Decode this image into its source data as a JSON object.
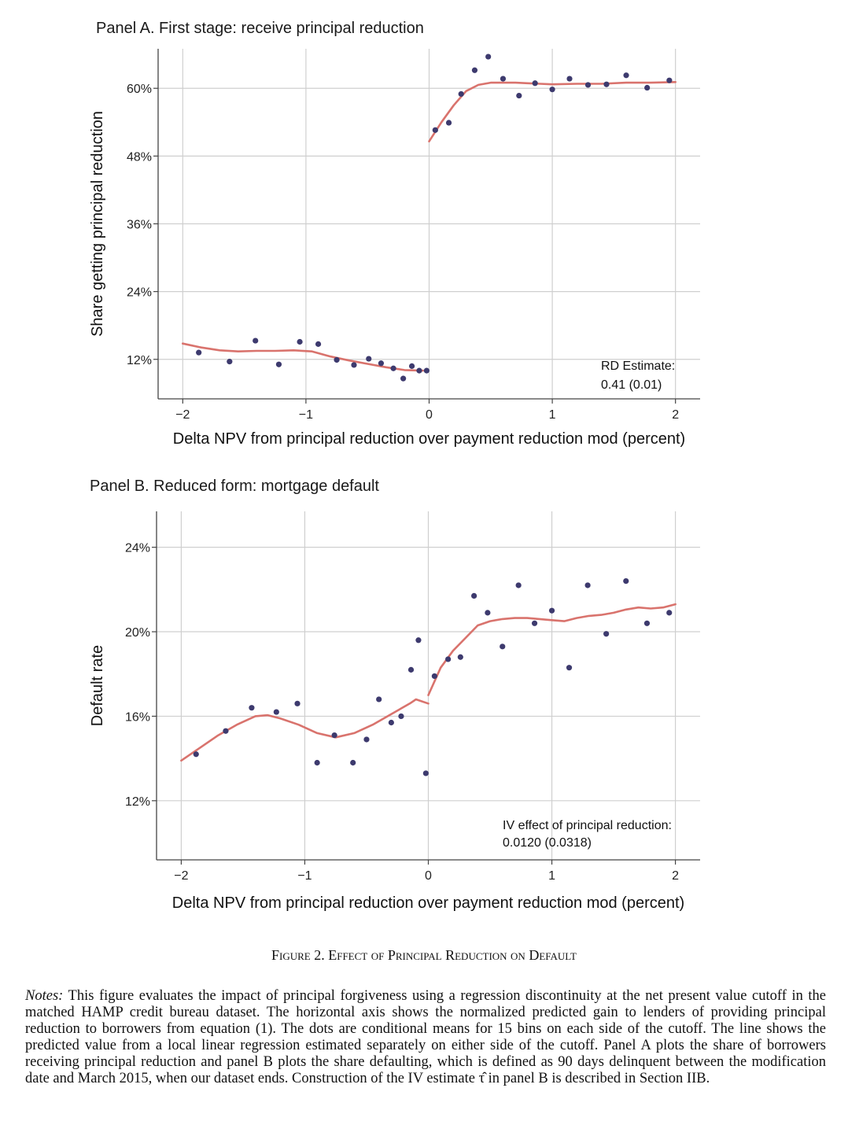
{
  "chart_data": [
    {
      "type": "scatter",
      "title": "Panel A. First stage: receive principal reduction",
      "xlabel": "Delta NPV from principal reduction over payment reduction mod (percent)",
      "ylabel": "Share getting principal reduction",
      "xlim": [
        -2.2,
        2.2
      ],
      "ylim": [
        5,
        67
      ],
      "x_ticks": [
        -2,
        -1,
        0,
        1,
        2
      ],
      "x_tick_labels": [
        "−2",
        "−1",
        "0",
        "1",
        "2"
      ],
      "y_ticks": [
        12,
        24,
        36,
        48,
        60
      ],
      "y_tick_labels": [
        "12%",
        "24%",
        "36%",
        "48%",
        "60%"
      ],
      "grid": true,
      "annotation": {
        "line1": "RD Estimate:",
        "line2": "0.41 (0.01)"
      },
      "series": [
        {
          "kind": "points",
          "x": [
            -1.87,
            -1.62,
            -1.41,
            -1.22,
            -1.05,
            -0.9,
            -0.75,
            -0.61,
            -0.49,
            -0.39,
            -0.29,
            -0.21,
            -0.14,
            -0.08,
            -0.02,
            0.05,
            0.16,
            0.26,
            0.37,
            0.48,
            0.6,
            0.73,
            0.86,
            1.0,
            1.14,
            1.29,
            1.44,
            1.6,
            1.77,
            1.95
          ],
          "y": [
            13.2,
            11.6,
            15.3,
            11.1,
            15.1,
            14.7,
            11.9,
            11.0,
            12.1,
            11.3,
            10.4,
            8.6,
            10.8,
            10.0,
            10.0,
            52.6,
            53.9,
            59.0,
            63.2,
            65.6,
            61.7,
            58.7,
            60.9,
            59.8,
            61.7,
            60.6,
            60.7,
            62.3,
            60.1,
            61.4
          ]
        },
        {
          "kind": "line",
          "side": "left",
          "x": [
            -2.0,
            -1.85,
            -1.7,
            -1.55,
            -1.4,
            -1.25,
            -1.1,
            -0.95,
            -0.8,
            -0.65,
            -0.5,
            -0.35,
            -0.2,
            -0.05
          ],
          "y": [
            14.8,
            14.1,
            13.6,
            13.4,
            13.5,
            13.5,
            13.6,
            13.4,
            12.5,
            11.8,
            11.2,
            10.6,
            10.1,
            10.0
          ]
        },
        {
          "kind": "line",
          "side": "right",
          "x": [
            0.0,
            0.1,
            0.2,
            0.3,
            0.4,
            0.5,
            0.6,
            0.7,
            0.8,
            0.9,
            1.0,
            1.2,
            1.4,
            1.6,
            1.8,
            2.0
          ],
          "y": [
            50.6,
            54.0,
            57.0,
            59.5,
            60.6,
            61.0,
            61.0,
            61.0,
            60.9,
            60.8,
            60.7,
            60.8,
            60.8,
            61.0,
            61.0,
            61.1
          ]
        }
      ]
    },
    {
      "type": "scatter",
      "title": "Panel B. Reduced form: mortgage default",
      "xlabel": "Delta NPV from principal reduction over payment reduction mod (percent)",
      "ylabel": "Default rate",
      "xlim": [
        -2.2,
        2.2
      ],
      "ylim": [
        9.2,
        25.7
      ],
      "x_ticks": [
        -2,
        -1,
        0,
        1,
        2
      ],
      "x_tick_labels": [
        "−2",
        "−1",
        "0",
        "1",
        "2"
      ],
      "y_ticks": [
        12,
        16,
        20,
        24
      ],
      "y_tick_labels": [
        "12%",
        "16%",
        "20%",
        "24%"
      ],
      "grid": true,
      "annotation": {
        "line1": "IV effect of principal reduction:",
        "line2": "0.0120 (0.0318)"
      },
      "series": [
        {
          "kind": "points",
          "x": [
            -1.88,
            -1.64,
            -1.43,
            -1.23,
            -1.06,
            -0.9,
            -0.76,
            -0.61,
            -0.5,
            -0.4,
            -0.3,
            -0.22,
            -0.14,
            -0.08,
            -0.02,
            0.05,
            0.16,
            0.26,
            0.37,
            0.48,
            0.6,
            0.73,
            0.86,
            1.0,
            1.14,
            1.29,
            1.44,
            1.6,
            1.77,
            1.95
          ],
          "y": [
            14.2,
            15.3,
            16.4,
            16.2,
            16.6,
            13.8,
            15.1,
            13.8,
            14.9,
            16.8,
            15.7,
            16.0,
            18.2,
            19.6,
            13.3,
            17.9,
            18.7,
            18.8,
            21.7,
            20.9,
            19.3,
            22.2,
            20.4,
            21.0,
            18.3,
            22.2,
            19.9,
            22.4,
            20.4,
            20.9
          ]
        },
        {
          "kind": "line",
          "side": "left",
          "x": [
            -2.0,
            -1.85,
            -1.7,
            -1.55,
            -1.4,
            -1.3,
            -1.2,
            -1.05,
            -0.9,
            -0.75,
            -0.6,
            -0.45,
            -0.3,
            -0.15,
            -0.1,
            0.0
          ],
          "y": [
            13.9,
            14.5,
            15.1,
            15.6,
            16.0,
            16.05,
            15.9,
            15.6,
            15.2,
            15.0,
            15.2,
            15.6,
            16.1,
            16.6,
            16.8,
            16.6
          ]
        },
        {
          "kind": "line",
          "side": "right",
          "x": [
            0.0,
            0.1,
            0.2,
            0.3,
            0.4,
            0.5,
            0.6,
            0.7,
            0.8,
            0.9,
            1.0,
            1.1,
            1.2,
            1.3,
            1.4,
            1.5,
            1.6,
            1.7,
            1.8,
            1.9,
            2.0
          ],
          "y": [
            17.0,
            18.3,
            19.1,
            19.7,
            20.3,
            20.5,
            20.6,
            20.65,
            20.65,
            20.6,
            20.55,
            20.5,
            20.65,
            20.75,
            20.8,
            20.9,
            21.05,
            21.15,
            21.1,
            21.15,
            21.3
          ]
        }
      ]
    }
  ],
  "caption": "Figure 2. Effect of Principal Reduction on Default",
  "notes_label": "Notes:",
  "notes_text": " This figure evaluates the impact of principal forgiveness using a regression discontinuity at the net present value cutoff in the matched HAMP credit bureau dataset. The horizontal axis shows the normalized predicted gain to lenders of providing principal reduction to borrowers from equation (1). The dots are conditional means for 15 bins on each side of the cutoff. The line shows the predicted value from a local linear regression estimated separately on either side of the cutoff. Panel A plots the share of borrowers receiving principal reduction and panel B plots the share defaulting, which is defined as 90 days delinquent between the modification date and March 2015, when our dataset ends. Construction of the IV estimate τ̂ in panel B is described in Section IIB.",
  "colors": {
    "points": "#3d3a6e",
    "line": "#d9736d",
    "grid": "#cfcfcf",
    "axis": "#444444"
  }
}
